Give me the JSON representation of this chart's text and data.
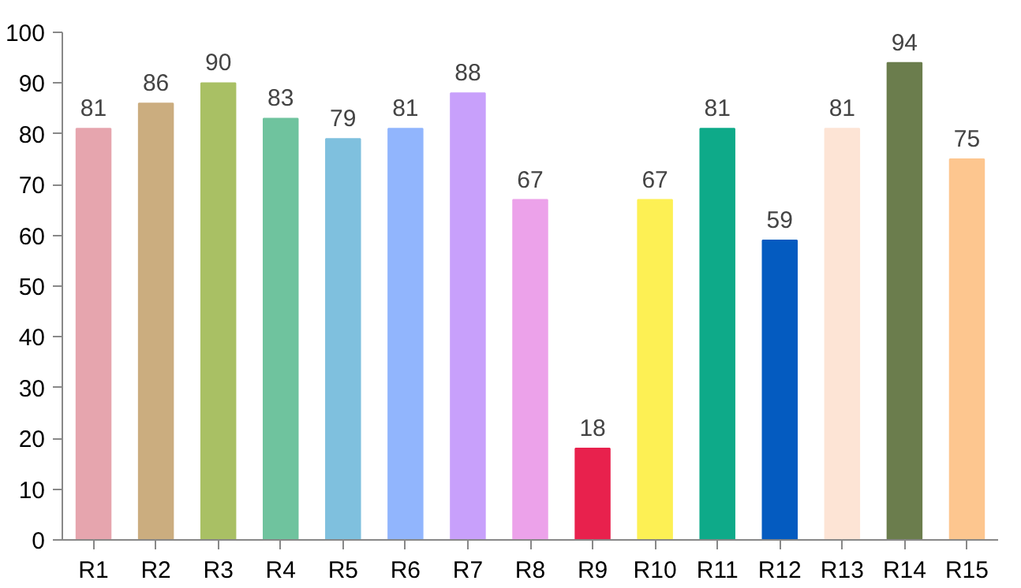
{
  "chart_data": {
    "type": "bar",
    "categories": [
      "R1",
      "R2",
      "R3",
      "R4",
      "R5",
      "R6",
      "R7",
      "R8",
      "R9",
      "R10",
      "R11",
      "R12",
      "R13",
      "R14",
      "R15"
    ],
    "values": [
      81,
      86,
      90,
      83,
      79,
      81,
      88,
      67,
      18,
      67,
      81,
      59,
      81,
      94,
      75
    ],
    "colors": [
      "#e6a5ae",
      "#cbad7f",
      "#a9c064",
      "#6fc39e",
      "#7fc0de",
      "#91b5fd",
      "#c8a0fb",
      "#eca2ea",
      "#e8214d",
      "#fdf054",
      "#0eaa89",
      "#045bc0",
      "#fde4d5",
      "#6b7d4d",
      "#fdc68f"
    ],
    "ylim": [
      0,
      100
    ],
    "yticks": [
      0,
      10,
      20,
      30,
      40,
      50,
      60,
      70,
      80,
      90,
      100
    ],
    "data_labels": true,
    "grid": false
  }
}
